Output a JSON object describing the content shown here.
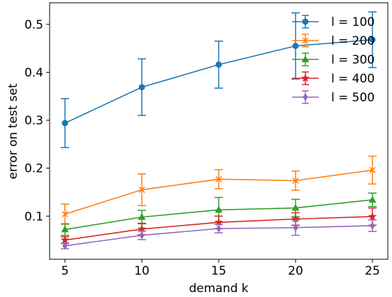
{
  "chart_data": {
    "type": "line",
    "xlabel": "demand k",
    "ylabel": "error on test set",
    "x": [
      5,
      10,
      15,
      20,
      25
    ],
    "xticks": [
      "5",
      "10",
      "15",
      "20",
      "25"
    ],
    "yticks": [
      "0.1",
      "0.2",
      "0.3",
      "0.4",
      "0.5"
    ],
    "xlim": [
      4.0,
      26.0
    ],
    "ylim": [
      0.01,
      0.545
    ],
    "grid": false,
    "legend_position": "top-right",
    "series": [
      {
        "name": "l = 100",
        "color": "#1f77b4",
        "marker": "circle",
        "values": [
          0.294,
          0.369,
          0.416,
          0.455,
          0.468
        ],
        "errors": [
          0.051,
          0.059,
          0.049,
          0.069,
          0.058
        ]
      },
      {
        "name": "l = 200",
        "color": "#ff7f0e",
        "marker": "x",
        "values": [
          0.104,
          0.155,
          0.177,
          0.174,
          0.196
        ],
        "errors": [
          0.021,
          0.033,
          0.02,
          0.02,
          0.029
        ]
      },
      {
        "name": "l = 300",
        "color": "#2ca02c",
        "marker": "triangle",
        "values": [
          0.072,
          0.098,
          0.113,
          0.117,
          0.134
        ],
        "errors": [
          0.012,
          0.014,
          0.026,
          0.018,
          0.014
        ]
      },
      {
        "name": "l = 400",
        "color": "#d62728",
        "marker": "star",
        "values": [
          0.05,
          0.073,
          0.087,
          0.094,
          0.099
        ],
        "errors": [
          0.007,
          0.012,
          0.013,
          0.013,
          0.018
        ]
      },
      {
        "name": "l = 500",
        "color": "#9467bd",
        "marker": "diamond",
        "values": [
          0.038,
          0.06,
          0.074,
          0.076,
          0.08
        ],
        "errors": [
          0.006,
          0.009,
          0.009,
          0.016,
          0.012
        ]
      }
    ]
  }
}
